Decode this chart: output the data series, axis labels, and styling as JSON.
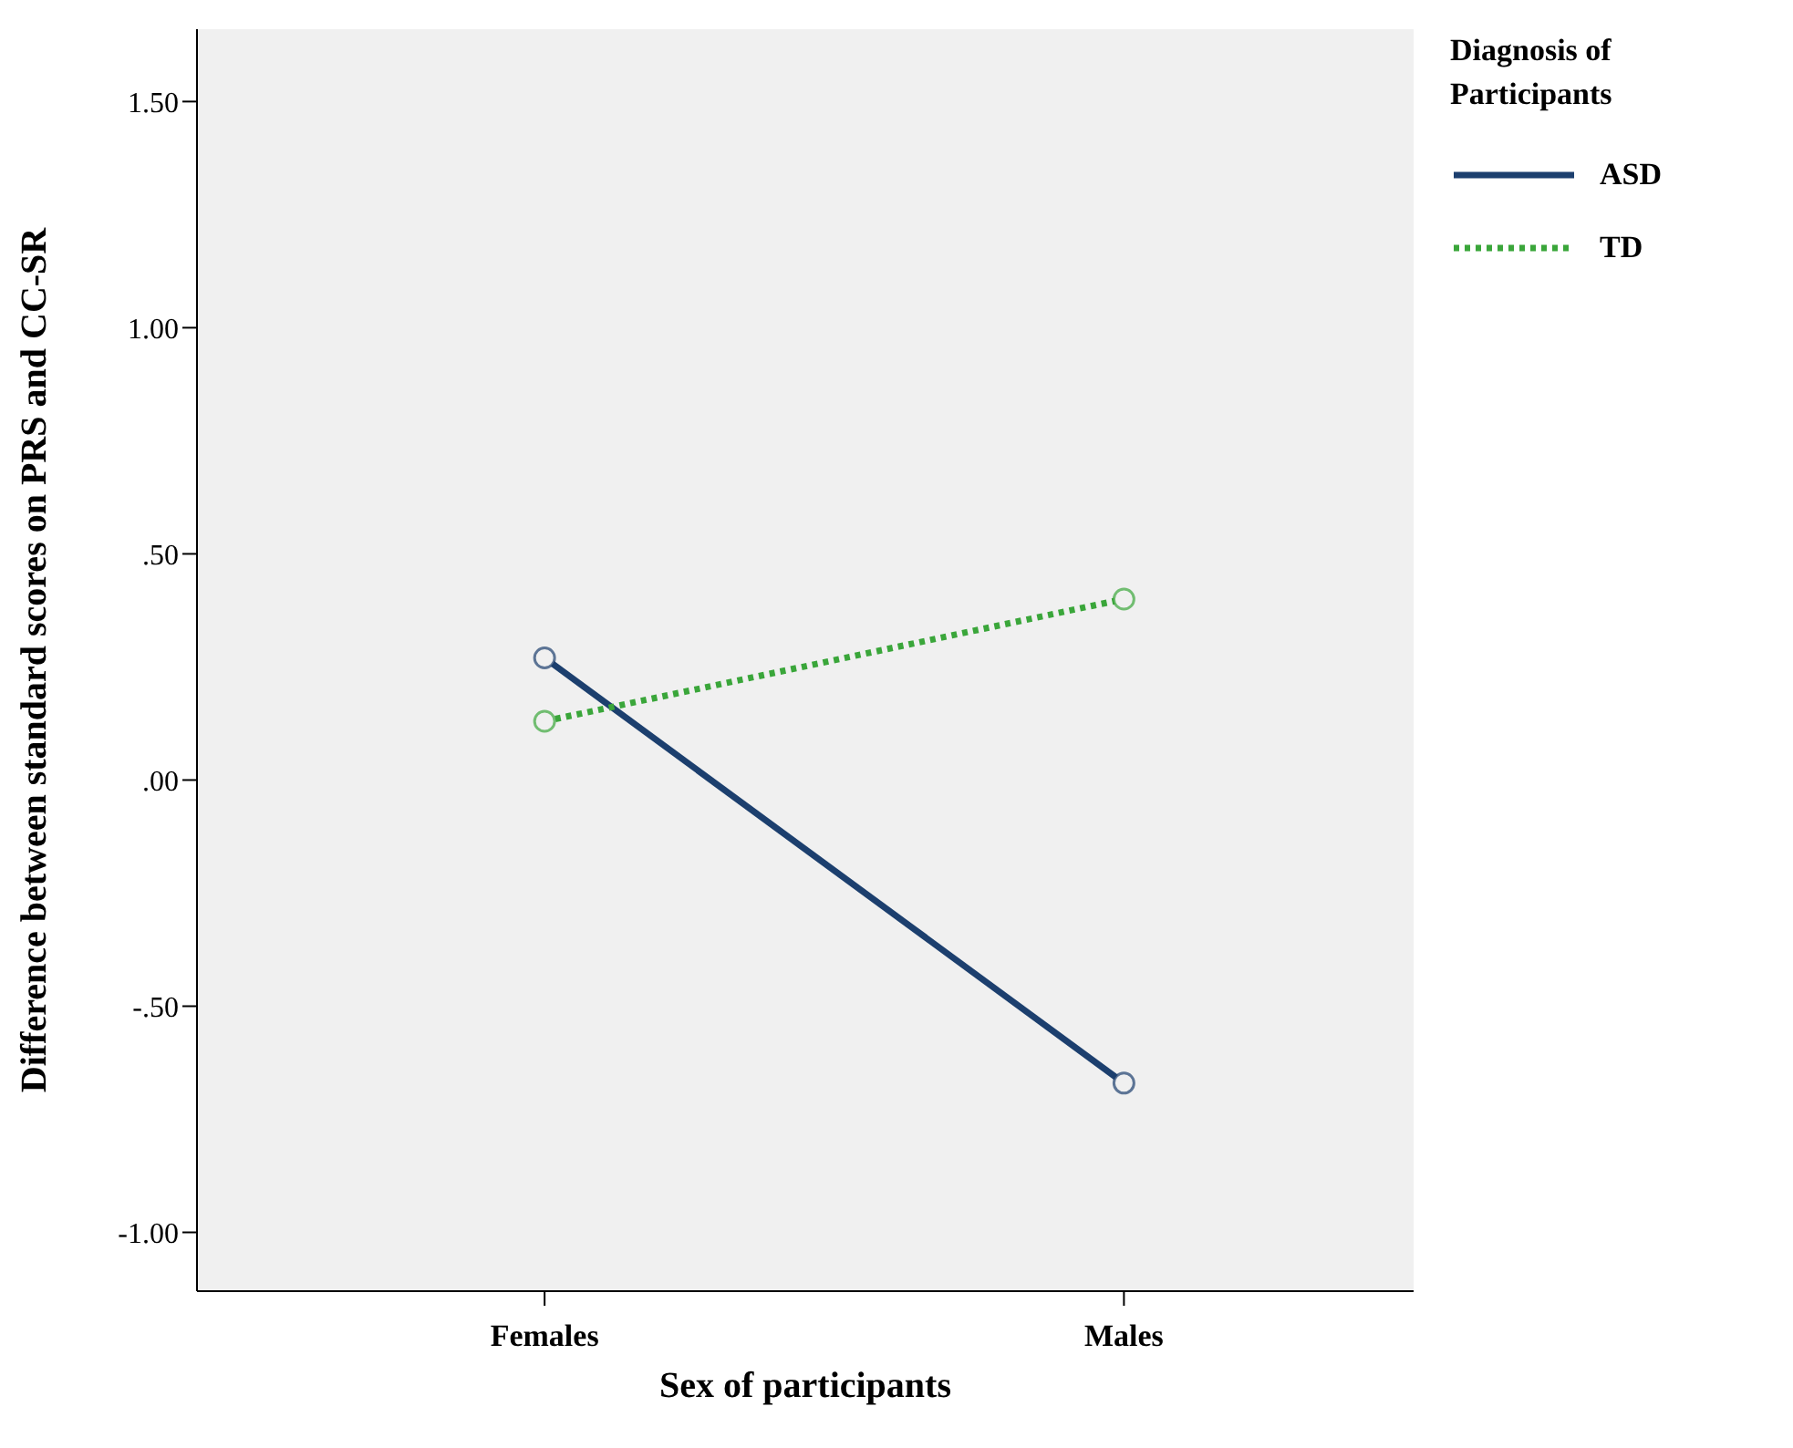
{
  "chart_data": {
    "type": "line",
    "xlabel": "Sex of participants",
    "ylabel": "Difference between standard scores on PRS and CC-SR",
    "legend_title": "Diagnosis of Participants",
    "categories": [
      "Females",
      "Males"
    ],
    "series": [
      {
        "name": "ASD",
        "color": "#1c3f6e",
        "values": [
          0.27,
          -0.67
        ],
        "line_style": "solid"
      },
      {
        "name": "TD",
        "color": "#3aa63a",
        "values": [
          0.13,
          0.4
        ],
        "line_style": "dotted"
      }
    ],
    "ylim": [
      -1.13,
      1.66
    ],
    "yticks": [
      {
        "value": -1,
        "label": "-1.00"
      },
      {
        "value": -0.5,
        "label": "-.50"
      },
      {
        "value": 0,
        "label": ".00"
      },
      {
        "value": 0.5,
        "label": ".50"
      },
      {
        "value": 1,
        "label": "1.00"
      },
      {
        "value": 1.5,
        "label": "1.50"
      }
    ],
    "marker": "circle",
    "grid": false,
    "legend": "top right"
  }
}
